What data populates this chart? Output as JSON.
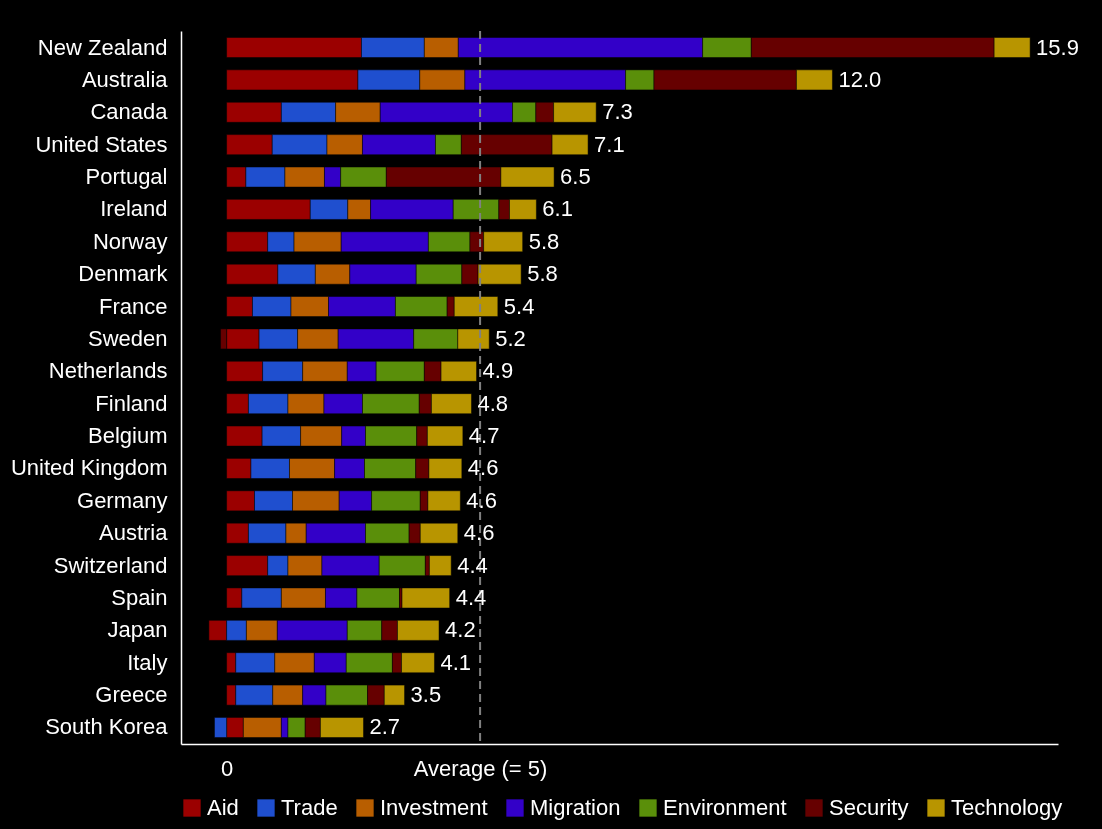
{
  "chart_data": {
    "type": "bar",
    "orientation": "horizontal",
    "stacked": true,
    "categories": [
      "New Zealand",
      "Australia",
      "Canada",
      "United States",
      "Portugal",
      "Ireland",
      "Norway",
      "Denmark",
      "France",
      "Sweden",
      "Netherlands",
      "Finland",
      "Belgium",
      "United Kingdom",
      "Germany",
      "Austria",
      "Switzerland",
      "Spain",
      "Japan",
      "Italy",
      "Greece",
      "South Korea"
    ],
    "series": [
      {
        "name": "Aid",
        "color": "#9b0000",
        "values": [
          2.66,
          2.59,
          1.08,
          0.9,
          0.38,
          1.65,
          0.81,
          1.01,
          0.51,
          0.64,
          0.71,
          0.43,
          0.7,
          0.48,
          0.55,
          0.43,
          0.81,
          0.3,
          -0.35,
          0.18,
          0.18,
          0.33
        ]
      },
      {
        "name": "Trade",
        "color": "#1f4fcf",
        "values": [
          1.24,
          1.22,
          1.07,
          1.08,
          0.77,
          0.74,
          0.52,
          0.74,
          0.76,
          0.76,
          0.79,
          0.78,
          0.76,
          0.76,
          0.75,
          0.74,
          0.4,
          0.78,
          0.39,
          0.77,
          0.73,
          -0.24
        ]
      },
      {
        "name": "Investment",
        "color": "#b85e00",
        "values": [
          0.67,
          0.89,
          0.88,
          0.7,
          0.78,
          0.45,
          0.93,
          0.68,
          0.74,
          0.8,
          0.88,
          0.71,
          0.81,
          0.89,
          0.92,
          0.4,
          0.67,
          0.87,
          0.61,
          0.78,
          0.59,
          0.75
        ]
      },
      {
        "name": "Migration",
        "color": "#3300c8",
        "values": [
          4.82,
          3.17,
          2.61,
          1.44,
          0.32,
          1.63,
          1.72,
          1.31,
          1.32,
          1.49,
          0.57,
          0.76,
          0.47,
          0.59,
          0.64,
          1.17,
          1.13,
          0.62,
          1.38,
          0.63,
          0.46,
          0.13
        ]
      },
      {
        "name": "Environment",
        "color": "#5a8f0a",
        "values": [
          0.96,
          0.56,
          0.46,
          0.51,
          0.9,
          0.9,
          0.82,
          0.9,
          1.02,
          0.87,
          0.95,
          1.12,
          1.01,
          1.01,
          0.96,
          0.86,
          0.91,
          0.84,
          0.68,
          0.91,
          0.82,
          0.34
        ]
      },
      {
        "name": "Security",
        "color": "#660000",
        "values": [
          4.79,
          2.81,
          0.35,
          1.79,
          2.26,
          0.21,
          0.27,
          0.32,
          0.14,
          -0.12,
          0.33,
          0.24,
          0.21,
          0.26,
          0.15,
          0.22,
          0.08,
          0.05,
          0.31,
          0.18,
          0.33,
          0.3
        ]
      },
      {
        "name": "Technology",
        "color": "#b89500",
        "values": [
          0.71,
          0.71,
          0.84,
          0.71,
          1.05,
          0.53,
          0.77,
          0.85,
          0.86,
          0.62,
          0.7,
          0.79,
          0.7,
          0.65,
          0.64,
          0.74,
          0.43,
          0.94,
          0.82,
          0.65,
          0.4,
          0.85
        ]
      }
    ],
    "totals": [
      "15.9",
      "12.0",
      "7.3",
      "7.1",
      "6.5",
      "6.1",
      "5.8",
      "5.8",
      "5.4",
      "5.2",
      "4.9",
      "4.8",
      "4.7",
      "4.6",
      "4.6",
      "4.6",
      "4.4",
      "4.4",
      "4.2",
      "4.1",
      "3.5",
      "2.7"
    ],
    "xlim": [
      -0.9,
      16.4
    ],
    "xticks": [
      0,
      {
        "value": 5,
        "label": "Average (= 5)"
      }
    ],
    "ref_lines": [
      {
        "axis": "x",
        "value": 5,
        "label": null,
        "color": "#808080",
        "line_style": "dashed"
      }
    ],
    "legend": "bottom",
    "grid": false
  }
}
